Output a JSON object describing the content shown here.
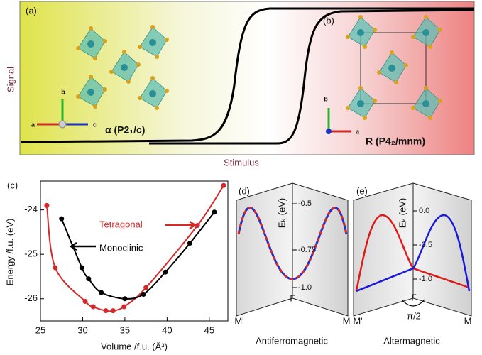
{
  "panel_a": {
    "label": "(a)",
    "phase": "α (P2₁/c)",
    "axes": [
      "a",
      "b",
      "c"
    ]
  },
  "panel_b": {
    "label": "(b)",
    "phase": "R (P4₂/mnm)",
    "axes": [
      "a",
      "b"
    ]
  },
  "top": {
    "y_label": "Signal",
    "x_label": "Stimulus"
  },
  "panel_c": {
    "label": "(c)",
    "chart_data": {
      "type": "scatter",
      "x_label": "Volume /f.u. (Å³)",
      "y_label": "Energy /f.u. (eV)",
      "xlim": [
        25,
        47.2
      ],
      "ylim": [
        -26.5,
        -23.35
      ],
      "xticks": [
        25,
        30,
        35,
        40,
        45
      ],
      "yticks": [
        -24,
        -25,
        -26
      ],
      "series": [
        {
          "name": "Tetragonal",
          "color": "#d42a2a",
          "x": [
            25.75,
            26.75,
            30.3,
            31.25,
            32.75,
            33.6,
            34.9,
            37.5,
            43.6,
            46.7
          ],
          "values": [
            -23.9,
            -25.3,
            -26.06,
            -26.18,
            -26.27,
            -26.27,
            -26.18,
            -25.75,
            -24.35,
            -23.45
          ]
        },
        {
          "name": "Monoclinic",
          "color": "#000000",
          "x": [
            27.5,
            29.9,
            30.7,
            32.2,
            35.0,
            37.2,
            39.8,
            42.7,
            45.6
          ],
          "values": [
            -24.2,
            -25.3,
            -25.55,
            -25.86,
            -26.0,
            -25.9,
            -25.4,
            -24.75,
            -24.05
          ]
        }
      ]
    }
  },
  "panel_d": {
    "label": "(d)",
    "axis_label": "Eₖ (eV)",
    "ticks": [
      "-0.5",
      "-0.75",
      "-1.0"
    ],
    "gamma": "Γ",
    "left": "M'",
    "right": "M",
    "caption": "Antiferromagnetic"
  },
  "panel_e": {
    "label": "(e)",
    "axis_label": "Eₖ (eV)",
    "ticks": [
      "0.0",
      "-0.5",
      "-1.0"
    ],
    "gamma": "Γ",
    "angle": "π/2",
    "left": "M'",
    "right": "M",
    "caption": "Altermagnetic"
  }
}
